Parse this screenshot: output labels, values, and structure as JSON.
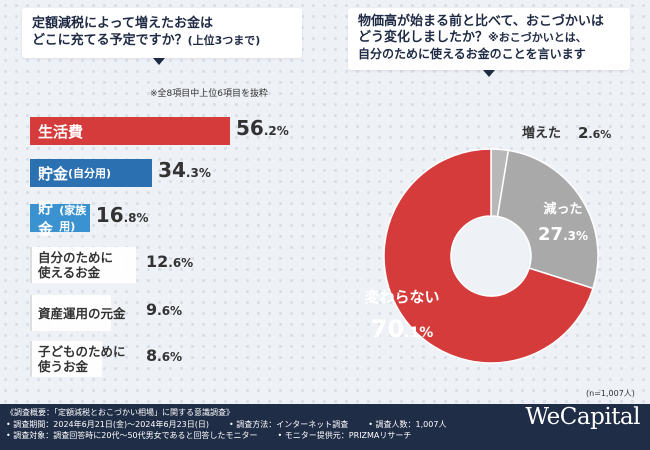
{
  "left_chart": {
    "question_line1": "定額減税によって増えたお金は",
    "question_line2": "どこに充てる予定ですか？",
    "question_suffix": "(上位3つまで)",
    "note": "※全8項目中上位6項目を抜粋"
  },
  "right_chart": {
    "question_line1": "物価高が始まる前と比べて、おこづかいは",
    "question_line2": "どう変化しましたか？",
    "question_note": "※おこづかいとは、",
    "question_line3": "自分のために使えるお金のことを言います",
    "sample": "(n=1,007人)"
  },
  "chart_data": [
    {
      "type": "bar",
      "orientation": "horizontal",
      "categories": [
        "生活費",
        "貯金(自分用)",
        "貯金(家族用)",
        "自分のために使えるお金",
        "資産運用の元金",
        "子どものために使うお金"
      ],
      "values": [
        56.2,
        34.3,
        16.8,
        12.6,
        9.6,
        8.6
      ],
      "unit": "%",
      "colors": [
        "#d63b3b",
        "#2b70b0",
        "#3a92d0",
        "#999999",
        "#999999",
        "#999999"
      ]
    },
    {
      "type": "pie",
      "style": "donut",
      "categories": [
        "増えた",
        "減った",
        "変わらない"
      ],
      "values": [
        2.6,
        27.3,
        70.1
      ],
      "unit": "%",
      "colors": [
        "#b8b8b8",
        "#a9a9a9",
        "#d63b3b"
      ]
    }
  ],
  "bars_display": [
    {
      "label": "生活費",
      "int": "56",
      "dec": ".2"
    },
    {
      "label": "貯金",
      "label_small": "(自分用)",
      "int": "34",
      "dec": ".3"
    },
    {
      "label": "貯金",
      "label_small": "(家族用)",
      "int": "16",
      "dec": ".8"
    },
    {
      "label1": "自分のために",
      "label2": "使えるお金",
      "int": "12",
      "dec": ".6"
    },
    {
      "label1": "資産運用の元金",
      "int": "9",
      "dec": ".6"
    },
    {
      "label1": "子どものために",
      "label2": "使うお金",
      "int": "8",
      "dec": ".6"
    }
  ],
  "pie_display": [
    {
      "label": "増えた",
      "int": "2",
      "dec": ".6"
    },
    {
      "label": "減った",
      "int": "27",
      "dec": ".3"
    },
    {
      "label": "変わらない",
      "int": "70",
      "dec": ".1"
    }
  ],
  "footer": {
    "line1": "《調査概要：「定額減税とおこづかい相場」に関する意識調査》",
    "line2a": "• 調査期間：2024年6月21日(金)〜2024年6月23日(日)",
    "line2b": "• 調査方法：インターネット調査",
    "line2c": "• 調査人数：1,007人",
    "line3a": "• 調査対象：調査回答時に20代〜50代男女であると回答したモニター",
    "line3b": "• モニター提供元：PRIZMAリサーチ",
    "logo": "WeCapital"
  }
}
